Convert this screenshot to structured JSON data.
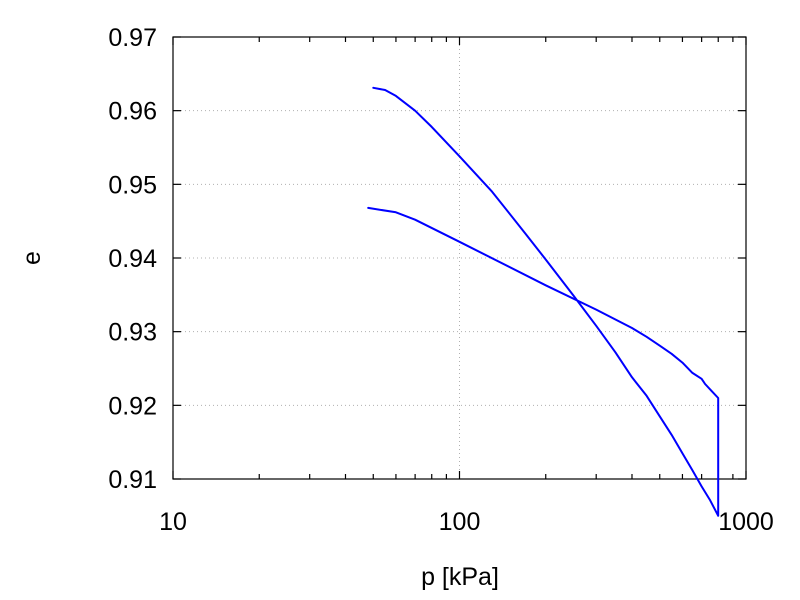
{
  "chart_data": {
    "type": "line",
    "title": "",
    "xlabel": "p [kPa]",
    "ylabel": "e",
    "xscale": "log",
    "xlim": [
      10,
      1000
    ],
    "ylim": [
      0.91,
      0.97
    ],
    "xticks": [
      10,
      100,
      1000
    ],
    "xtick_labels": [
      "10",
      "100",
      "1000"
    ],
    "xminor_ticks": [
      20,
      30,
      40,
      50,
      60,
      70,
      80,
      90,
      200,
      300,
      400,
      500,
      600,
      700,
      800,
      900
    ],
    "yticks": [
      0.91,
      0.92,
      0.93,
      0.94,
      0.95,
      0.96,
      0.97
    ],
    "ytick_labels": [
      "0.91",
      "0.92",
      "0.93",
      "0.94",
      "0.95",
      "0.96",
      "0.97"
    ],
    "grid": true,
    "line_color": "#0000ff",
    "series": [
      {
        "points": [
          [
            50,
            0.9631
          ],
          [
            55,
            0.9628
          ],
          [
            60,
            0.962
          ],
          [
            70,
            0.96
          ],
          [
            80,
            0.9578
          ],
          [
            100,
            0.9538
          ],
          [
            130,
            0.949
          ],
          [
            170,
            0.9433
          ],
          [
            200,
            0.9398
          ],
          [
            250,
            0.9349
          ],
          [
            300,
            0.9308
          ],
          [
            350,
            0.9272
          ],
          [
            400,
            0.9238
          ],
          [
            450,
            0.9213
          ],
          [
            500,
            0.9185
          ],
          [
            550,
            0.916
          ],
          [
            600,
            0.9135
          ],
          [
            650,
            0.9112
          ],
          [
            700,
            0.909
          ],
          [
            750,
            0.9071
          ],
          [
            800,
            0.905
          ],
          [
            800,
            0.921
          ],
          [
            760,
            0.9219
          ],
          [
            720,
            0.9229
          ],
          [
            700,
            0.9236
          ],
          [
            650,
            0.9244
          ],
          [
            600,
            0.9258
          ],
          [
            550,
            0.927
          ],
          [
            500,
            0.9281
          ],
          [
            450,
            0.9293
          ],
          [
            400,
            0.9305
          ],
          [
            300,
            0.933
          ],
          [
            200,
            0.9363
          ],
          [
            100,
            0.9422
          ],
          [
            70,
            0.9452
          ],
          [
            60,
            0.9462
          ],
          [
            48,
            0.9468
          ]
        ]
      }
    ]
  }
}
